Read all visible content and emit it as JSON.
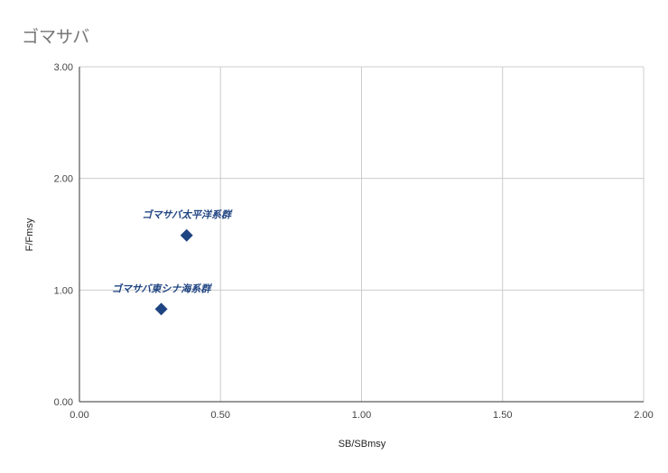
{
  "title": "ゴマサバ",
  "chart_data": {
    "type": "scatter",
    "title": "ゴマサバ",
    "xlabel": "SB/SBmsy",
    "ylabel": "F/Fmsy",
    "xlim": [
      0,
      2
    ],
    "ylim": [
      0,
      3
    ],
    "x_ticks": [
      "0.00",
      "0.50",
      "1.00",
      "1.50",
      "2.00"
    ],
    "y_ticks": [
      "0.00",
      "1.00",
      "2.00",
      "3.00"
    ],
    "grid": true,
    "marker": "diamond",
    "marker_color": "#1f4482",
    "points": [
      {
        "label": "ゴマサバ太平洋系群",
        "x": 0.38,
        "y": 1.49
      },
      {
        "label": "ゴマサバ東シナ海系群",
        "x": 0.29,
        "y": 0.83
      }
    ]
  }
}
